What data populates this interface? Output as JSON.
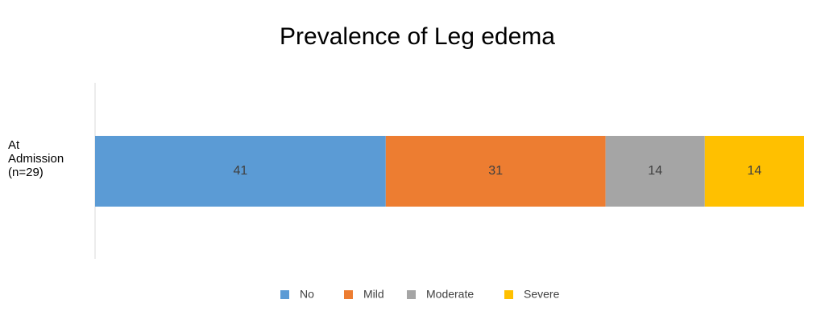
{
  "chart_data": {
    "type": "stacked-bar-horizontal",
    "title": "Prevalence of Leg edema",
    "categories": [
      "At\nAdmission\n(n=29)"
    ],
    "xlim": [
      0,
      100
    ],
    "series": [
      {
        "name": "No",
        "color": "#5b9bd5",
        "values": [
          41
        ]
      },
      {
        "name": "Mild",
        "color": "#ed7d31",
        "values": [
          31
        ]
      },
      {
        "name": "Moderate",
        "color": "#a5a5a5",
        "values": [
          14
        ]
      },
      {
        "name": "Severe",
        "color": "#ffc000",
        "values": [
          14
        ]
      }
    ],
    "legend": "bottom"
  }
}
